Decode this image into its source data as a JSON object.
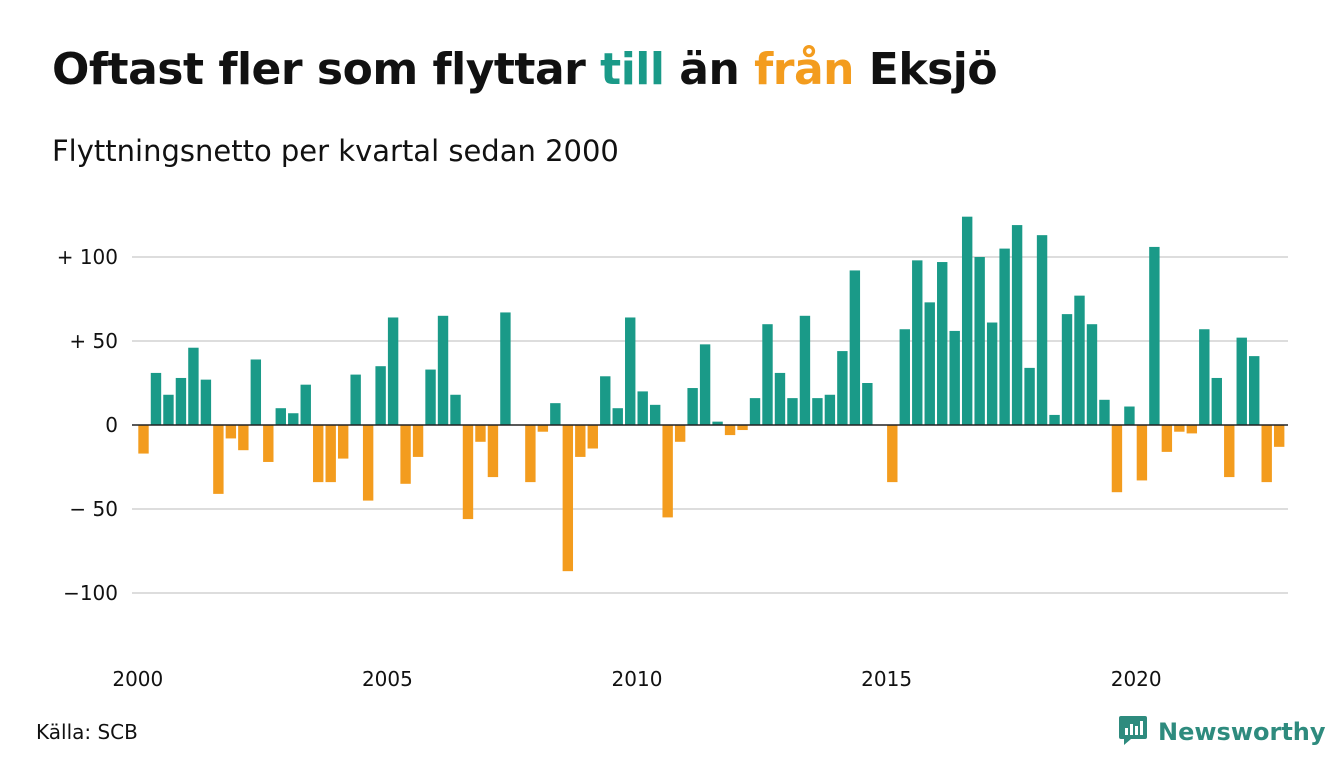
{
  "title": {
    "part1": "Oftast fler som flyttar ",
    "highlight_in": "till",
    "part2": " än ",
    "highlight_out": "från",
    "part3": " Eksjö"
  },
  "subtitle": "Flyttningsnetto per kvartal sedan 2000",
  "source": "Källa: SCB",
  "brand": {
    "name": "Newsworthy",
    "icon": "bar-chart-speech-icon"
  },
  "colors": {
    "positive": "#1a9a88",
    "negative": "#f39c1e",
    "grid": "#dddddd",
    "brand": "#2e8b7e"
  },
  "chart_data": {
    "type": "bar",
    "title": "Oftast fler som flyttar till än från Eksjö",
    "subtitle": "Flyttningsnetto per kvartal sedan 2000",
    "xlabel": "",
    "ylabel": "",
    "ylim": [
      -130,
      130
    ],
    "x_start": "2000 Q1",
    "x_ticks": [
      "2000",
      "2005",
      "2010",
      "2015",
      "2020"
    ],
    "y_ticks": [
      {
        "value": 100,
        "label": "+ 100"
      },
      {
        "value": 50,
        "label": "+  50"
      },
      {
        "value": 0,
        "label": "0"
      },
      {
        "value": -50,
        "label": "− 50"
      },
      {
        "value": -100,
        "label": "−100"
      }
    ],
    "grid": true,
    "values": [
      -17,
      31,
      18,
      28,
      46,
      27,
      -41,
      -8,
      -15,
      39,
      -22,
      10,
      7,
      24,
      -34,
      -34,
      -20,
      30,
      -45,
      35,
      64,
      -35,
      -19,
      33,
      65,
      18,
      -56,
      -10,
      -31,
      67,
      0,
      -34,
      -4,
      13,
      -87,
      -19,
      -14,
      29,
      10,
      64,
      20,
      12,
      -55,
      -10,
      22,
      48,
      2,
      -6,
      -3,
      16,
      60,
      31,
      16,
      65,
      16,
      18,
      44,
      92,
      25,
      0,
      -34,
      57,
      98,
      73,
      97,
      56,
      124,
      100,
      61,
      105,
      119,
      34,
      113,
      6,
      66,
      77,
      60,
      15,
      -40,
      11,
      -33,
      106,
      -16,
      -4,
      -5,
      57,
      28,
      -31,
      52,
      41,
      -34,
      -13
    ]
  }
}
